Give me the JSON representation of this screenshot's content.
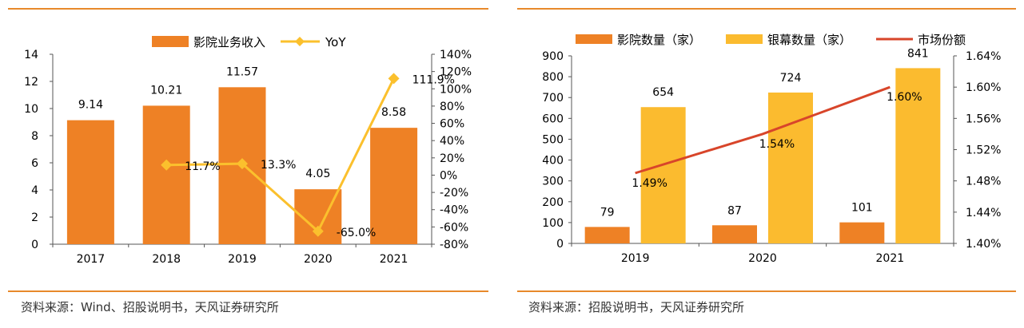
{
  "colors": {
    "rule": "#e8892b",
    "bar_orange": "#ee8125",
    "bar_yellow": "#fbbb2f",
    "line_yellow": "#fbc02d",
    "line_red": "#d8452a",
    "axis": "#555555",
    "text": "#000000"
  },
  "left": {
    "source": "资料来源：Wind、招股说明书，天风证券研究所"
  },
  "right": {
    "source": "资料来源：招股说明书，天风证券研究所"
  },
  "chart_data": [
    {
      "type": "bar",
      "combo": "bar+line",
      "categories": [
        "2017",
        "2018",
        "2019",
        "2020",
        "2021"
      ],
      "series": [
        {
          "name": "影院业务收入",
          "kind": "bar",
          "axis": "left",
          "values": [
            9.14,
            10.21,
            11.57,
            4.05,
            8.58
          ],
          "labels": [
            "9.14",
            "10.21",
            "11.57",
            "4.05",
            "8.58"
          ]
        },
        {
          "name": "YoY",
          "kind": "line",
          "axis": "right",
          "values": [
            null,
            11.7,
            13.3,
            -65.0,
            111.9
          ],
          "labels": [
            "",
            "11.7%",
            "13.3%",
            "-65.0%",
            "111.9%"
          ]
        }
      ],
      "y_left": {
        "min": 0,
        "max": 14,
        "ticks": [
          "0",
          "2",
          "4",
          "6",
          "8",
          "10",
          "12",
          "14"
        ]
      },
      "y_right": {
        "min": -80,
        "max": 140,
        "ticks": [
          "-80%",
          "-60%",
          "-40%",
          "-20%",
          "0%",
          "20%",
          "40%",
          "60%",
          "80%",
          "100%",
          "120%",
          "140%"
        ]
      },
      "legend_position": "top",
      "grid": false
    },
    {
      "type": "bar",
      "combo": "bar+line",
      "categories": [
        "2019",
        "2020",
        "2021"
      ],
      "series": [
        {
          "name": "影院数量（家）",
          "kind": "bar",
          "axis": "left",
          "values": [
            79,
            87,
            101
          ],
          "labels": [
            "79",
            "87",
            "101"
          ]
        },
        {
          "name": "银幕数量（家）",
          "kind": "bar",
          "axis": "left",
          "values": [
            654,
            724,
            841
          ],
          "labels": [
            "654",
            "724",
            "841"
          ]
        },
        {
          "name": "市场份额",
          "kind": "line",
          "axis": "right",
          "values": [
            1.49,
            1.54,
            1.6
          ],
          "labels": [
            "1.49%",
            "1.54%",
            "1.60%"
          ]
        }
      ],
      "y_left": {
        "min": 0,
        "max": 900,
        "ticks": [
          "0",
          "100",
          "200",
          "300",
          "400",
          "500",
          "600",
          "700",
          "800",
          "900"
        ]
      },
      "y_right": {
        "min": 1.4,
        "max": 1.64,
        "ticks": [
          "1.40%",
          "1.44%",
          "1.48%",
          "1.52%",
          "1.56%",
          "1.60%",
          "1.64%"
        ]
      },
      "legend_position": "top",
      "grid": false
    }
  ]
}
